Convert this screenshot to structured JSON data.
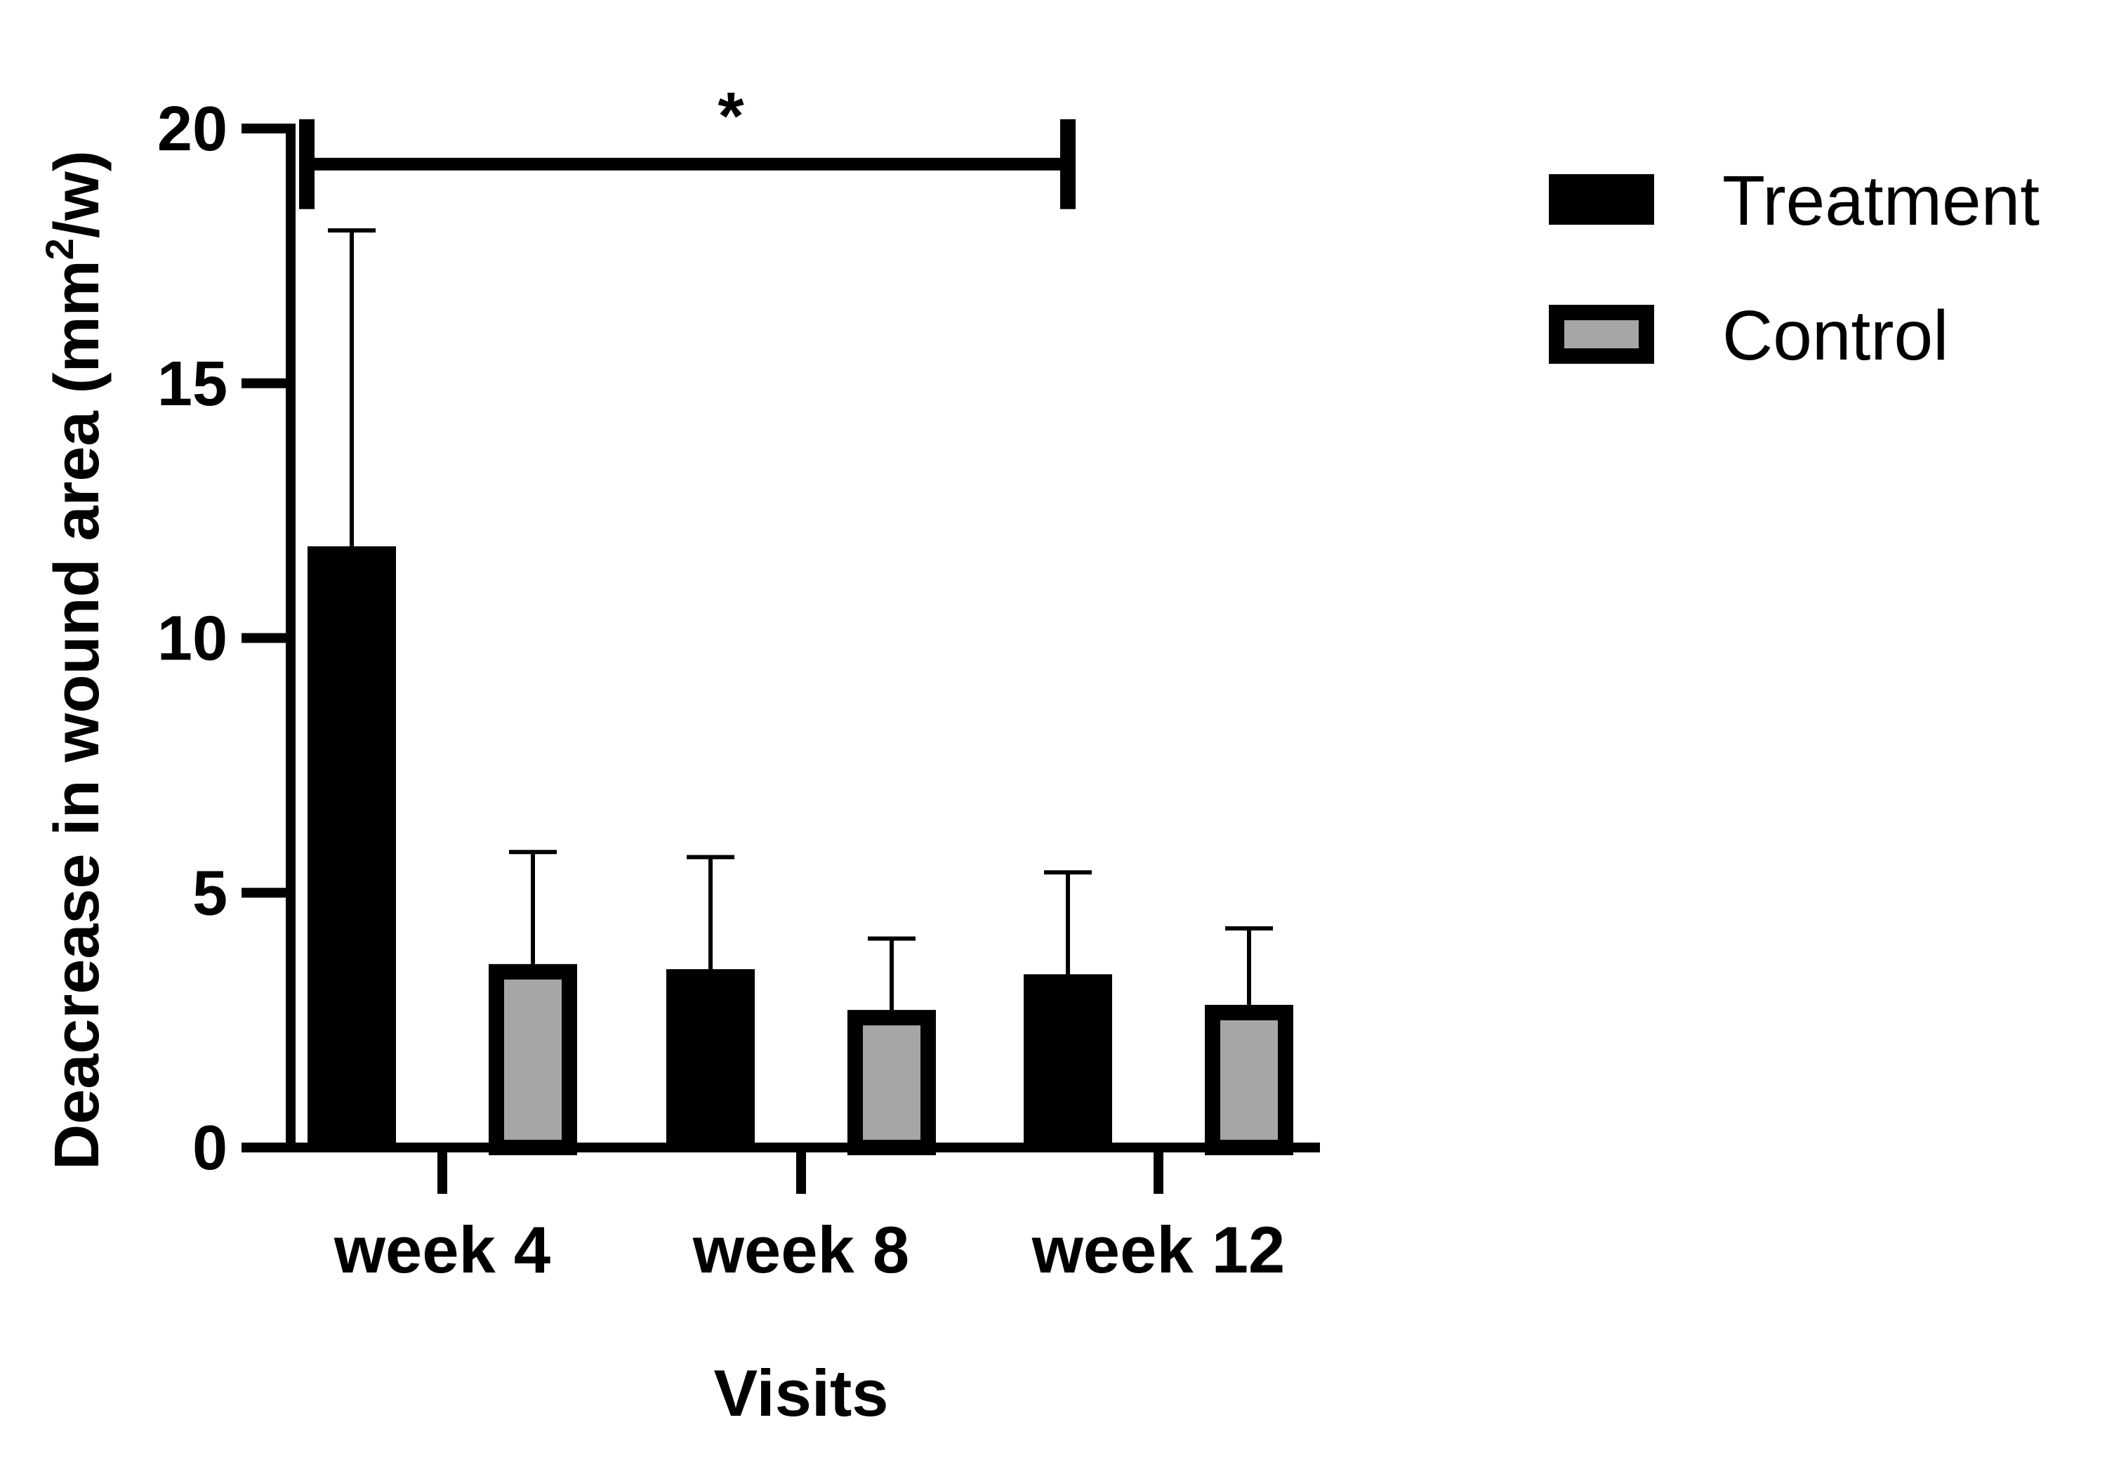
{
  "chart_data": {
    "type": "bar",
    "title": "",
    "xlabel": "Visits",
    "ylabel_main": "Deacrease in wound area (mm",
    "ylabel_sup": "2",
    "ylabel_end": "/w)",
    "categories": [
      "week 4",
      "week 8",
      "week 12"
    ],
    "ylim": [
      0,
      20
    ],
    "yticks": [
      0,
      5,
      10,
      15,
      20
    ],
    "series": [
      {
        "name": "Treatment",
        "color": "#000000",
        "values": [
          11.8,
          3.5,
          3.4
        ],
        "errors": [
          6.2,
          2.2,
          2.0
        ]
      },
      {
        "name": "Control",
        "color": "#a6a6a9",
        "values": [
          3.6,
          2.7,
          2.8
        ],
        "errors": [
          2.2,
          1.4,
          1.5
        ]
      }
    ],
    "significance": {
      "label": "*",
      "from_category": "week 4",
      "to_category": "week 12",
      "level": 19.3
    },
    "legend_position": "top-right"
  }
}
